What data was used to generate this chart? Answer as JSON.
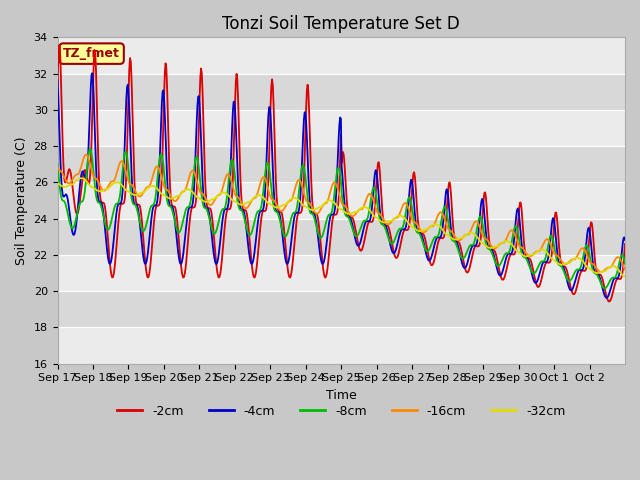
{
  "title": "Tonzi Soil Temperature Set D",
  "xlabel": "Time",
  "ylabel": "Soil Temperature (C)",
  "ylim": [
    16,
    34
  ],
  "label_text": "TZ_fmet",
  "label_bg": "#ffff99",
  "label_border": "#990000",
  "line_colors": {
    "-2cm": "#dd0000",
    "-4cm": "#0000cc",
    "-8cm": "#00bb00",
    "-16cm": "#ff8800",
    "-32cm": "#dddd00"
  },
  "legend_labels": [
    "-2cm",
    "-4cm",
    "-8cm",
    "-16cm",
    "-32cm"
  ],
  "plot_bg_light": "#ebebeb",
  "plot_bg_dark": "#d8d8d8",
  "fig_bg": "#c8c8c8",
  "grid_color": "#ffffff",
  "x_tick_labels": [
    "Sep 17",
    "Sep 18",
    "Sep 19",
    "Sep 20",
    "Sep 21",
    "Sep 22",
    "Sep 23",
    "Sep 24",
    "Sep 25",
    "Sep 26",
    "Sep 27",
    "Sep 28",
    "Sep 29",
    "Sep 30",
    "Oct 1",
    "Oct 2"
  ],
  "title_fontsize": 12,
  "axis_label_fontsize": 9,
  "tick_fontsize": 8
}
